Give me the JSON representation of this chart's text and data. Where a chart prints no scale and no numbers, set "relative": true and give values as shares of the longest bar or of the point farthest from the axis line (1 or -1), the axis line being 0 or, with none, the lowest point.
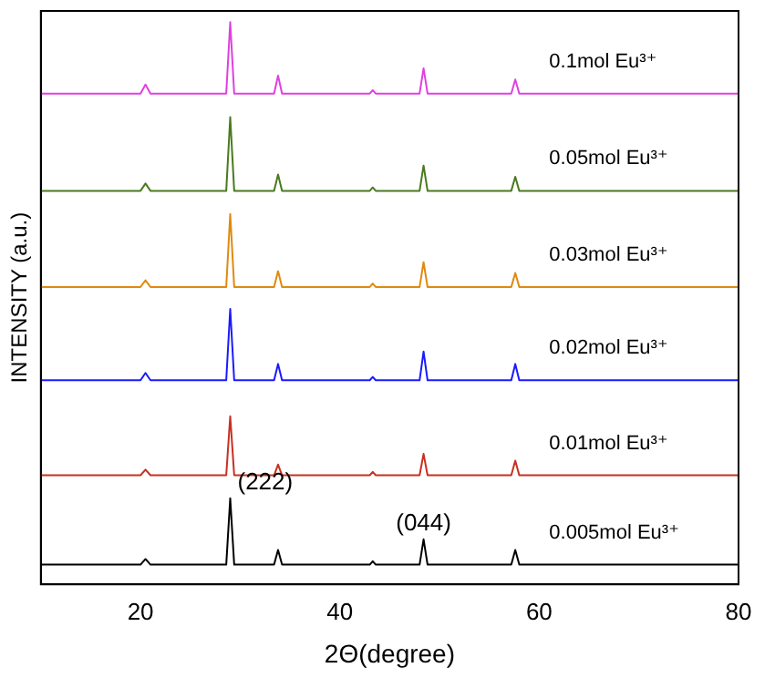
{
  "chart_data": {
    "type": "line",
    "relative": true,
    "xlabel": "2Θ(degree)",
    "ylabel": "INTENSITY (a.u.)",
    "xlim": [
      10,
      80
    ],
    "xticks": [
      20,
      40,
      60,
      80
    ],
    "grid": false,
    "legend": false,
    "marker": "none",
    "line_style": "solid",
    "x": [
      10,
      20,
      20.5,
      21,
      28.6,
      29,
      29.4,
      33.4,
      33.8,
      34.2,
      43,
      43.3,
      43.6,
      48,
      48.4,
      48.8,
      57.2,
      57.6,
      58,
      80
    ],
    "series": [
      {
        "name": "0.1mol Eu³⁺",
        "color": "#e040e0",
        "values": [
          0.873,
          0.873,
          0.889,
          0.873,
          0.873,
          1.0,
          0.873,
          0.873,
          0.905,
          0.873,
          0.873,
          0.879,
          0.873,
          0.873,
          0.918,
          0.873,
          0.873,
          0.898,
          0.873,
          0.873
        ]
      },
      {
        "name": "0.05mol Eu³⁺",
        "color": "#4a7a1e",
        "values": [
          0.7,
          0.7,
          0.713,
          0.7,
          0.7,
          0.831,
          0.7,
          0.7,
          0.729,
          0.7,
          0.7,
          0.706,
          0.7,
          0.7,
          0.745,
          0.7,
          0.7,
          0.725,
          0.7,
          0.7
        ]
      },
      {
        "name": "0.03mol Eu³⁺",
        "color": "#e08a10",
        "values": [
          0.529,
          0.529,
          0.541,
          0.529,
          0.529,
          0.659,
          0.529,
          0.529,
          0.557,
          0.529,
          0.529,
          0.535,
          0.529,
          0.529,
          0.573,
          0.529,
          0.529,
          0.554,
          0.529,
          0.529
        ]
      },
      {
        "name": "0.02mol Eu³⁺",
        "color": "#1a1aff",
        "values": [
          0.363,
          0.363,
          0.376,
          0.363,
          0.363,
          0.49,
          0.363,
          0.363,
          0.392,
          0.363,
          0.363,
          0.369,
          0.363,
          0.363,
          0.414,
          0.363,
          0.363,
          0.392,
          0.363,
          0.363
        ]
      },
      {
        "name": "0.01mol Eu³⁺",
        "color": "#c83020",
        "values": [
          0.194,
          0.194,
          0.204,
          0.194,
          0.194,
          0.299,
          0.194,
          0.194,
          0.213,
          0.194,
          0.194,
          0.2,
          0.194,
          0.194,
          0.232,
          0.194,
          0.194,
          0.22,
          0.194,
          0.194
        ]
      },
      {
        "name": "0.005mol Eu³⁺",
        "color": "#000000",
        "values": [
          0.035,
          0.035,
          0.045,
          0.035,
          0.035,
          0.153,
          0.035,
          0.035,
          0.061,
          0.035,
          0.035,
          0.041,
          0.035,
          0.035,
          0.08,
          0.035,
          0.035,
          0.061,
          0.035,
          0.035
        ]
      }
    ],
    "annotations": [
      {
        "text": "(222)",
        "x": 29,
        "y": 0.153
      },
      {
        "text": "(044)",
        "x": 48.4,
        "y": 0.08
      }
    ]
  }
}
